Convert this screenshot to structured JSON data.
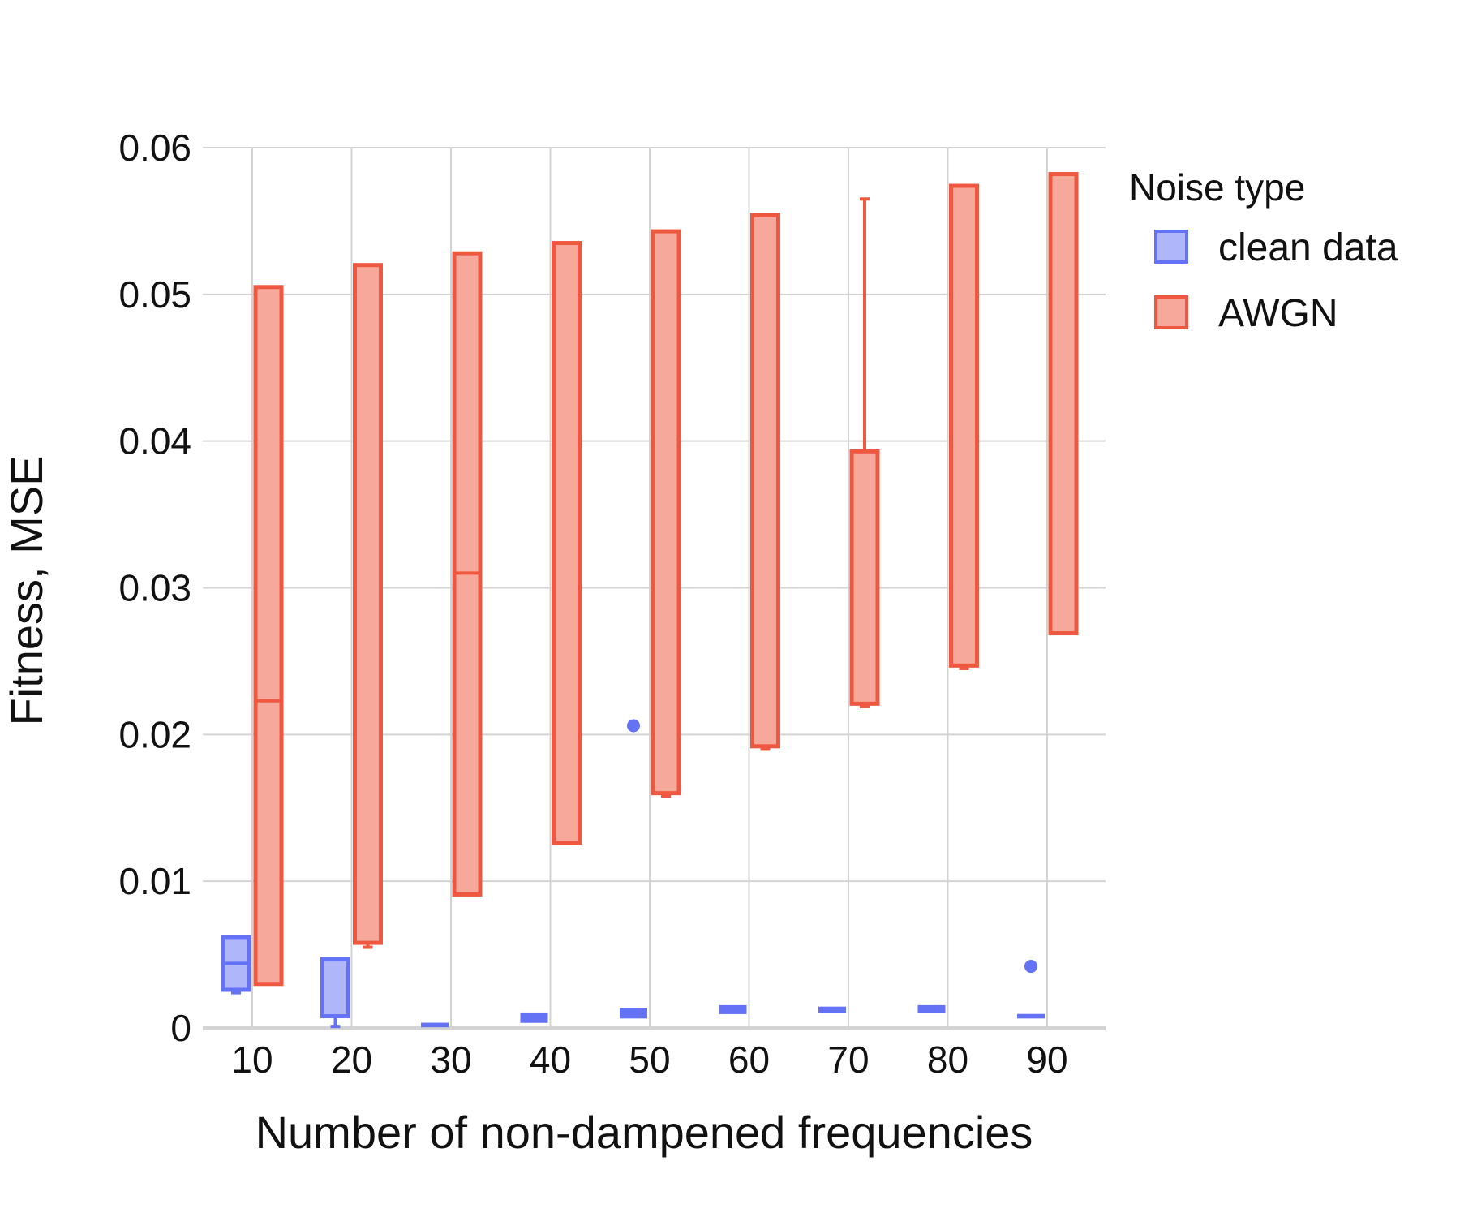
{
  "chart_data": {
    "type": "box",
    "xlabel": "Number of non-dampened frequencies",
    "ylabel": "Fitness, MSE",
    "categories": [
      "10",
      "20",
      "30",
      "40",
      "50",
      "60",
      "70",
      "80",
      "90"
    ],
    "ylim": [
      0,
      0.06
    ],
    "y_ticks": [
      "0",
      "0.01",
      "0.02",
      "0.03",
      "0.04",
      "0.05",
      "0.06"
    ],
    "grid": true,
    "legend": {
      "title": "Noise type",
      "placement": "right",
      "items": [
        "clean data",
        "AWGN"
      ]
    },
    "colors": {
      "clean_fill": "#b0b6fa",
      "clean_stroke": "#6472f5",
      "awgn_fill": "#f6a89a",
      "awgn_stroke": "#ef5840",
      "grid": "#d3d3d3",
      "axis": "#d3d3d3"
    },
    "series": [
      {
        "name": "clean data",
        "boxes": [
          {
            "x": "10",
            "q1": 0.0026,
            "median": 0.0044,
            "q3": 0.0062,
            "lower": 0.0024,
            "upper": 0.0062,
            "outliers": []
          },
          {
            "x": "20",
            "q1": 0.0008,
            "median": 0.0008,
            "q3": 0.0047,
            "lower": 0.0001,
            "upper": 0.0047,
            "outliers": []
          },
          {
            "x": "30",
            "q1": 0.0001,
            "median": 0.0002,
            "q3": 0.0003,
            "lower": 0.0001,
            "upper": 0.0003,
            "outliers": []
          },
          {
            "x": "40",
            "q1": 0.0004,
            "median": 0.0007,
            "q3": 0.001,
            "lower": 0.0004,
            "upper": 0.001,
            "outliers": []
          },
          {
            "x": "50",
            "q1": 0.0007,
            "median": 0.001,
            "q3": 0.0013,
            "lower": 0.0007,
            "upper": 0.0013,
            "outliers": [
              0.0206
            ]
          },
          {
            "x": "60",
            "q1": 0.001,
            "median": 0.0012,
            "q3": 0.0015,
            "lower": 0.001,
            "upper": 0.0015,
            "outliers": []
          },
          {
            "x": "70",
            "q1": 0.0011,
            "median": 0.0012,
            "q3": 0.0014,
            "lower": 0.0011,
            "upper": 0.0014,
            "outliers": []
          },
          {
            "x": "80",
            "q1": 0.0011,
            "median": 0.0013,
            "q3": 0.0015,
            "lower": 0.0011,
            "upper": 0.0015,
            "outliers": []
          },
          {
            "x": "90",
            "q1": 0.0007,
            "median": 0.0008,
            "q3": 0.0009,
            "lower": 0.0007,
            "upper": 0.0009,
            "outliers": [
              0.0042
            ]
          }
        ]
      },
      {
        "name": "AWGN",
        "boxes": [
          {
            "x": "10",
            "q1": 0.003,
            "median": 0.0223,
            "q3": 0.0505,
            "lower": 0.003,
            "upper": 0.0505,
            "outliers": []
          },
          {
            "x": "20",
            "q1": 0.0058,
            "median": 0.0058,
            "q3": 0.052,
            "lower": 0.0055,
            "upper": 0.052,
            "outliers": []
          },
          {
            "x": "30",
            "q1": 0.0091,
            "median": 0.031,
            "q3": 0.0528,
            "lower": 0.0091,
            "upper": 0.0528,
            "outliers": []
          },
          {
            "x": "40",
            "q1": 0.0126,
            "median": 0.0126,
            "q3": 0.0535,
            "lower": 0.0126,
            "upper": 0.0535,
            "outliers": []
          },
          {
            "x": "50",
            "q1": 0.016,
            "median": 0.016,
            "q3": 0.0543,
            "lower": 0.0158,
            "upper": 0.0543,
            "outliers": []
          },
          {
            "x": "60",
            "q1": 0.0192,
            "median": 0.0192,
            "q3": 0.0554,
            "lower": 0.019,
            "upper": 0.0554,
            "outliers": []
          },
          {
            "x": "70",
            "q1": 0.0221,
            "median": 0.0221,
            "q3": 0.0393,
            "lower": 0.0219,
            "upper": 0.0565,
            "outliers": []
          },
          {
            "x": "80",
            "q1": 0.0247,
            "median": 0.0247,
            "q3": 0.0574,
            "lower": 0.0245,
            "upper": 0.0574,
            "outliers": []
          },
          {
            "x": "90",
            "q1": 0.0269,
            "median": 0.0582,
            "q3": 0.0582,
            "lower": 0.0269,
            "upper": 0.0582,
            "outliers": []
          }
        ]
      }
    ]
  }
}
